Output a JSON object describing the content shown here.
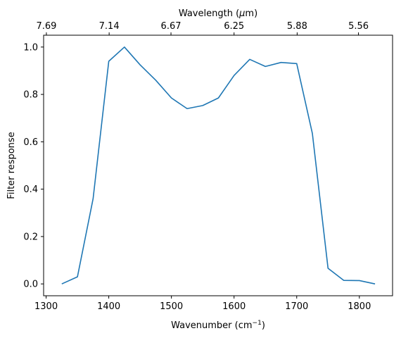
{
  "chart_data": {
    "type": "line",
    "xlabel": "Wavenumber (cm",
    "xlabel_sup": "−1",
    "xlabel_end": ")",
    "ylabel": "Filter response",
    "top_xlabel_pre": "Wavelength (",
    "top_xlabel_mu": "μ",
    "top_xlabel_post": "m)",
    "xlim": [
      1296,
      1853
    ],
    "ylim": [
      -0.05,
      1.05
    ],
    "grid": false,
    "x_ticks": [
      1300,
      1400,
      1500,
      1600,
      1700,
      1800
    ],
    "x_tick_labels": [
      "1300",
      "1400",
      "1500",
      "1600",
      "1700",
      "1800"
    ],
    "y_ticks": [
      0.0,
      0.2,
      0.4,
      0.6,
      0.8,
      1.0
    ],
    "y_tick_labels": [
      "0.0",
      "0.2",
      "0.4",
      "0.6",
      "0.8",
      "1.0"
    ],
    "top_ticks": [
      {
        "wavenumber": 1300.4,
        "label": "7.69"
      },
      {
        "wavenumber": 1400.6,
        "label": "7.14"
      },
      {
        "wavenumber": 1499.3,
        "label": "6.67"
      },
      {
        "wavenumber": 1600.0,
        "label": "6.25"
      },
      {
        "wavenumber": 1700.7,
        "label": "5.88"
      },
      {
        "wavenumber": 1798.6,
        "label": "5.56"
      }
    ],
    "series": [
      {
        "color": "#1f77b4",
        "x": [
          1325,
          1350,
          1375,
          1400,
          1425,
          1450,
          1475,
          1500,
          1525,
          1550,
          1575,
          1600,
          1625,
          1650,
          1675,
          1700,
          1725,
          1750,
          1775,
          1800,
          1825
        ],
        "y": [
          0.0,
          0.03,
          0.36,
          0.94,
          1.0,
          0.925,
          0.86,
          0.785,
          0.74,
          0.753,
          0.785,
          0.88,
          0.948,
          0.918,
          0.935,
          0.93,
          0.635,
          0.066,
          0.015,
          0.014,
          0.0
        ]
      }
    ]
  }
}
